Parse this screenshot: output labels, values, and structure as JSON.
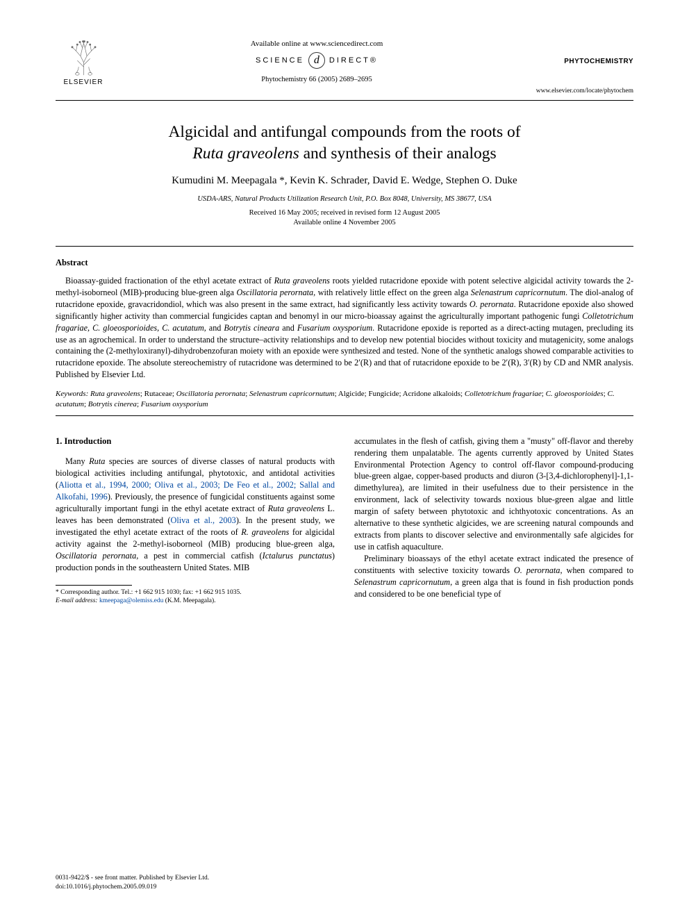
{
  "header": {
    "elsevier_label": "ELSEVIER",
    "available_online": "Available online at www.sciencedirect.com",
    "sd_left": "SCIENCE",
    "sd_d": "d",
    "sd_right": "DIRECT®",
    "citation": "Phytochemistry 66 (2005) 2689–2695",
    "journal_name": "PHYTOCHEMISTRY",
    "journal_url": "www.elsevier.com/locate/phytochem"
  },
  "title": {
    "line1": "Algicidal and antifungal compounds from the roots of",
    "line2_italic": "Ruta graveolens",
    "line2_rest": " and synthesis of their analogs"
  },
  "authors": "Kumudini M. Meepagala *, Kevin K. Schrader, David E. Wedge, Stephen O. Duke",
  "affiliation": "USDA-ARS, Natural Products Utilization Research Unit, P.O. Box 8048, University, MS 38677, USA",
  "dates": {
    "line1": "Received 16 May 2005; received in revised form 12 August 2005",
    "line2": "Available online 4 November 2005"
  },
  "abstract_heading": "Abstract",
  "abstract_segments": [
    {
      "t": "Bioassay-guided fractionation of the ethyl acetate extract of "
    },
    {
      "t": "Ruta graveolens",
      "i": true
    },
    {
      "t": " roots yielded rutacridone epoxide with potent selective algicidal activity towards the 2-methyl-isoborneol (MIB)-producing blue-green alga "
    },
    {
      "t": "Oscillatoria perornata",
      "i": true
    },
    {
      "t": ", with relatively little effect on the green alga "
    },
    {
      "t": "Selenastrum capricornutum",
      "i": true
    },
    {
      "t": ". The diol-analog of rutacridone epoxide, gravacridondiol, which was also present in the same extract, had significantly less activity towards "
    },
    {
      "t": "O. perornata",
      "i": true
    },
    {
      "t": ". Rutacridone epoxide also showed significantly higher activity than commercial fungicides captan and benomyl in our micro-bioassay against the agriculturally important pathogenic fungi "
    },
    {
      "t": "Colletotrichum fragariae, C. gloeosporioides, C. acutatum",
      "i": true
    },
    {
      "t": ", and "
    },
    {
      "t": "Botrytis cineara",
      "i": true
    },
    {
      "t": " and "
    },
    {
      "t": "Fusarium oxysporium",
      "i": true
    },
    {
      "t": ". Rutacridone epoxide is reported as a direct-acting mutagen, precluding its use as an agrochemical. In order to understand the structure–activity relationships and to develop new potential biocides without toxicity and mutagenicity, some analogs containing the (2-methyloxiranyl)-dihydrobenzofuran moiety with an epoxide were synthesized and tested. None of the synthetic analogs showed comparable activities to rutacridone epoxide. The absolute stereochemistry of rutacridone was determined to be 2′(R) and that of rutacridone epoxide to be 2′(R), 3′(R) by CD and NMR analysis. Published by Elsevier Ltd."
    }
  ],
  "keywords_label": "Keywords:",
  "keywords_segments": [
    {
      "t": " "
    },
    {
      "t": "Ruta graveolens",
      "i": true
    },
    {
      "t": "; Rutaceae; "
    },
    {
      "t": "Oscillatoria perornata",
      "i": true
    },
    {
      "t": "; "
    },
    {
      "t": "Selenastrum capricornutum",
      "i": true
    },
    {
      "t": "; Algicide; Fungicide; Acridone alkaloids; "
    },
    {
      "t": "Colletotrichum fragariae",
      "i": true
    },
    {
      "t": "; "
    },
    {
      "t": "C. gloeosporioides",
      "i": true
    },
    {
      "t": "; "
    },
    {
      "t": "C. acutatum",
      "i": true
    },
    {
      "t": "; "
    },
    {
      "t": "Botrytis cinerea",
      "i": true
    },
    {
      "t": "; "
    },
    {
      "t": "Fusarium oxysporium",
      "i": true
    }
  ],
  "intro_heading": "1. Introduction",
  "col_left_segments": [
    {
      "t": "Many "
    },
    {
      "t": "Ruta",
      "i": true
    },
    {
      "t": " species are sources of diverse classes of natural products with biological activities including antifungal, phytotoxic, and antidotal activities ("
    },
    {
      "t": "Aliotta et al., 1994, 2000; Oliva et al., 2003; De Feo et al., 2002; Sallal and Alkofahi, 1996",
      "b": true
    },
    {
      "t": "). Previously, the presence of fungicidal constituents against some agriculturally important fungi in the ethyl acetate extract of "
    },
    {
      "t": "Ruta graveolens",
      "i": true
    },
    {
      "t": " L. leaves has been demonstrated ("
    },
    {
      "t": "Oliva et al., 2003",
      "b": true
    },
    {
      "t": "). In the present study, we investigated the ethyl acetate extract of the roots of "
    },
    {
      "t": "R. graveolens",
      "i": true
    },
    {
      "t": " for algicidal activity against the 2-methyl-isoborneol (MIB) producing blue-green alga, "
    },
    {
      "t": "Oscillatoria perornata",
      "i": true
    },
    {
      "t": ", a pest in commercial catfish ("
    },
    {
      "t": "Ictalurus punctatus",
      "i": true
    },
    {
      "t": ") production ponds in the southeastern United States. MIB"
    }
  ],
  "col_right_segments": [
    {
      "t": "accumulates in the flesh of catfish, giving them a \"musty\" off-flavor and thereby rendering them unpalatable. The agents currently approved by United States Environmental Protection Agency to control off-flavor compound-producing blue-green algae, copper-based products and diuron (3-[3,4-dichlorophenyl]-1,1-dimethylurea), are limited in their usefulness due to their persistence in the environment, lack of selectivity towards noxious blue-green algae and little margin of safety between phytotoxic and ichthyotoxic concentrations. As an alternative to these synthetic algicides, we are screening natural compounds and extracts from plants to discover selective and environmentally safe algicides for use in catfish aquaculture."
    }
  ],
  "col_right_p2_segments": [
    {
      "t": "Preliminary bioassays of the ethyl acetate extract indicated the presence of constituents with selective toxicity towards "
    },
    {
      "t": "O. perornata",
      "i": true
    },
    {
      "t": ", when compared to "
    },
    {
      "t": "Selenastrum capricornutum",
      "i": true
    },
    {
      "t": ", a green alga that is found in fish production ponds and considered to be one beneficial type of"
    }
  ],
  "footnote": {
    "line1": "* Corresponding author. Tel.: +1 662 915 1030; fax: +1 662 915 1035.",
    "email_label": "E-mail address:",
    "email": "kmeepaga@olemiss.edu",
    "email_rest": " (K.M. Meepagala)."
  },
  "footer": {
    "line1": "0031-9422/$ - see front matter.  Published by Elsevier Ltd.",
    "line2": "doi:10.1016/j.phytochem.2005.09.019"
  },
  "elsevier_svg": {
    "stroke": "#6b6b6b",
    "fill": "none"
  }
}
